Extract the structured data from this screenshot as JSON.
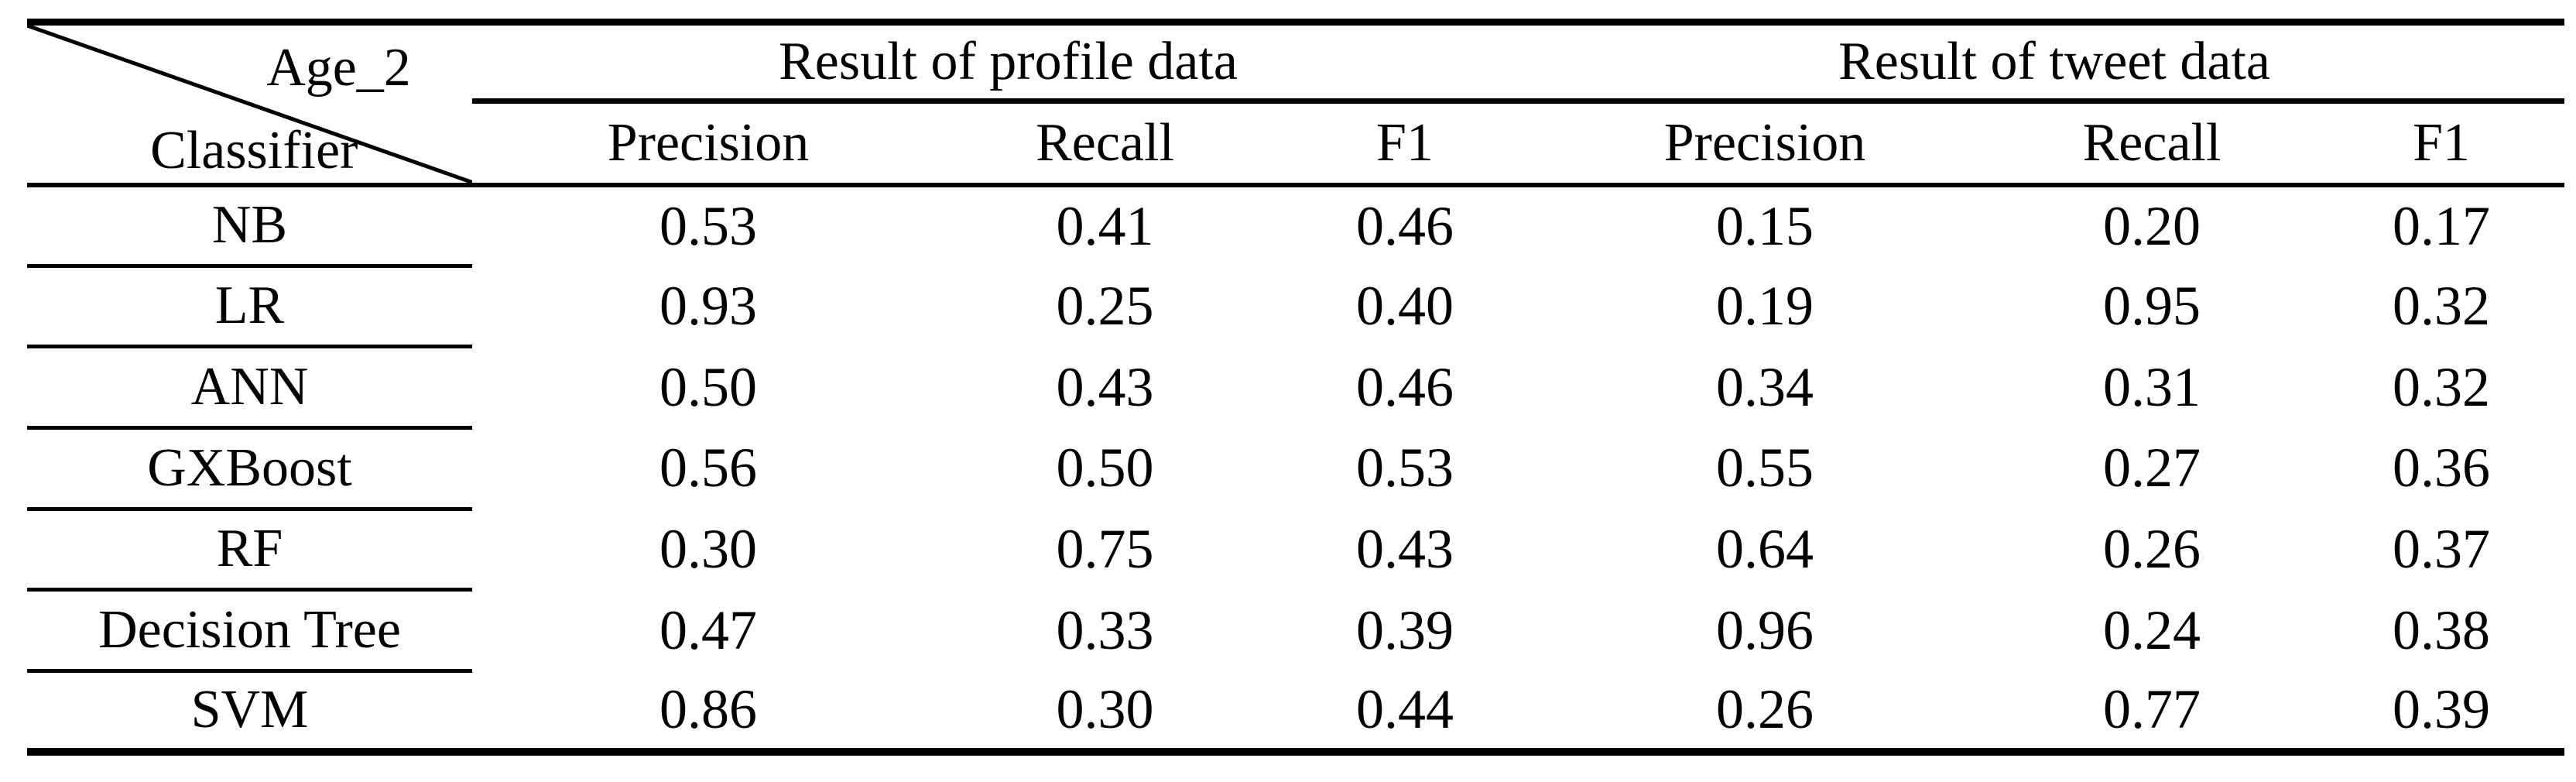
{
  "table": {
    "corner": {
      "top_label": "Age_2",
      "bottom_label": "Classifier"
    },
    "groups": [
      {
        "label": "Result of profile data"
      },
      {
        "label": "Result of tweet data"
      }
    ],
    "sub_headers": [
      "Precision",
      "Recall",
      "F1",
      "Precision",
      "Recall",
      "F1"
    ],
    "rows": [
      {
        "classifier": "NB",
        "values": [
          {
            "v": "0.53"
          },
          {
            "v": "0.41"
          },
          {
            "v": "0.46"
          },
          {
            "v": "0.15"
          },
          {
            "v": "0.20"
          },
          {
            "v": "0.17"
          }
        ]
      },
      {
        "classifier": "LR",
        "values": [
          {
            "v": "0.93",
            "bold": true
          },
          {
            "v": "0.25"
          },
          {
            "v": "0.40"
          },
          {
            "v": "0.19"
          },
          {
            "v": "0.95"
          },
          {
            "v": "0.32"
          }
        ]
      },
      {
        "classifier": "ANN",
        "values": [
          {
            "v": "0.50"
          },
          {
            "v": "0.43"
          },
          {
            "v": "0.46"
          },
          {
            "v": "0.34"
          },
          {
            "v": "0.31"
          },
          {
            "v": "0.32"
          }
        ]
      },
      {
        "classifier": "GXBoost",
        "values": [
          {
            "v": "0.56"
          },
          {
            "v": "0.50"
          },
          {
            "v": "0.53",
            "bold": true
          },
          {
            "v": "0.55"
          },
          {
            "v": "0.27"
          },
          {
            "v": "0.36"
          }
        ]
      },
      {
        "classifier": "RF",
        "values": [
          {
            "v": "0.30"
          },
          {
            "v": "0.75",
            "bold": true
          },
          {
            "v": "0.43"
          },
          {
            "v": "0.64"
          },
          {
            "v": "0.26"
          },
          {
            "v": "0.37"
          }
        ]
      },
      {
        "classifier": "Decision Tree",
        "values": [
          {
            "v": "0.47"
          },
          {
            "v": "0.33"
          },
          {
            "v": "0.39"
          },
          {
            "v": "0.96",
            "bold": true
          },
          {
            "v": "0.24"
          },
          {
            "v": "0.38"
          }
        ]
      },
      {
        "classifier": "SVM",
        "values": [
          {
            "v": "0.86"
          },
          {
            "v": "0.30"
          },
          {
            "v": "0.44"
          },
          {
            "v": "0.26"
          },
          {
            "v": "0.77",
            "bold": true
          },
          {
            "v": "0.39",
            "bold": true
          }
        ]
      }
    ],
    "colors": {
      "text": "#000000",
      "rule": "#000000",
      "background": "#ffffff"
    }
  }
}
